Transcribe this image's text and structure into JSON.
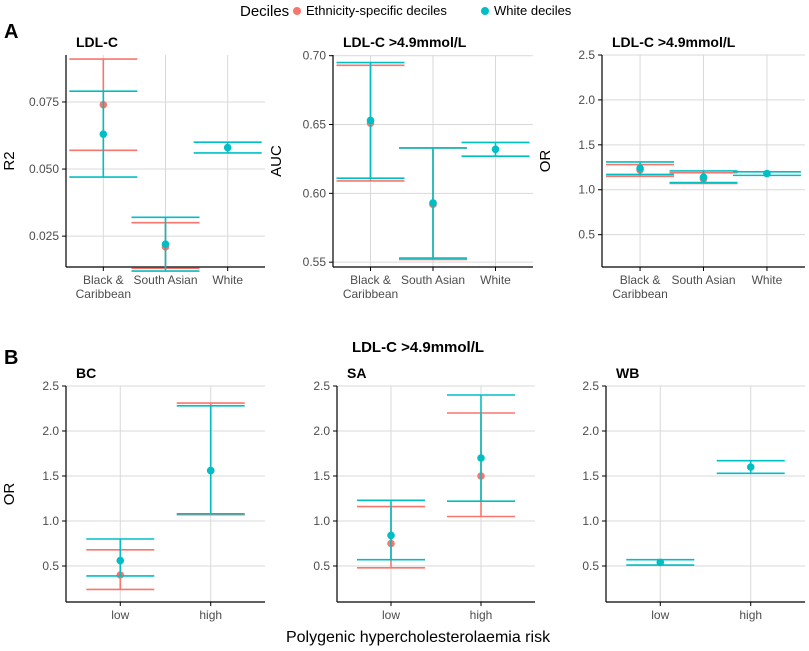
{
  "colors": {
    "ethnicity": "#F8766D",
    "white": "#00BFC4",
    "grid": "#d9d9d9",
    "axis": "#000000"
  },
  "legend": {
    "title": "Deciles",
    "items": [
      {
        "label": "Ethnicity-specific deciles",
        "color": "#F8766D"
      },
      {
        "label": "White deciles",
        "color": "#00BFC4"
      }
    ]
  },
  "panel_labels": {
    "a": "A",
    "b": "B"
  },
  "row_b_title": "LDL-C >4.9mmol/L",
  "x_axis_title": "Polygenic hypercholesterolaemia risk",
  "chart_data": [
    {
      "type": "errorbar",
      "id": "a1",
      "title": "LDL-C",
      "ylabel": "R2",
      "categories": [
        "Black &\nCaribbean",
        "South Asian",
        "White"
      ],
      "ylim": [
        0.0135,
        0.0925
      ],
      "yticks": [
        0.025,
        0.05,
        0.075
      ],
      "ytick_labels": [
        "0.025",
        "0.050",
        "0.075"
      ],
      "series": [
        {
          "name": "Ethnicity-specific deciles",
          "color": "#F8766D",
          "points": [
            {
              "category": "Black &\nCaribbean",
              "est": 0.074,
              "lo": 0.057,
              "hi": 0.091
            },
            {
              "category": "South Asian",
              "est": 0.021,
              "lo": 0.013,
              "hi": 0.03
            }
          ]
        },
        {
          "name": "White deciles",
          "color": "#00BFC4",
          "points": [
            {
              "category": "Black &\nCaribbean",
              "est": 0.063,
              "lo": 0.047,
              "hi": 0.079
            },
            {
              "category": "South Asian",
              "est": 0.022,
              "lo": 0.012,
              "hi": 0.032
            },
            {
              "category": "White",
              "est": 0.058,
              "lo": 0.056,
              "hi": 0.06
            }
          ]
        }
      ]
    },
    {
      "type": "errorbar",
      "id": "a2",
      "title": "LDL-C >4.9mmol/L",
      "ylabel": "AUC",
      "categories": [
        "Black &\nCaribbean",
        "South Asian",
        "White"
      ],
      "ylim": [
        0.5465,
        0.7005
      ],
      "yticks": [
        0.55,
        0.6,
        0.65,
        0.7
      ],
      "ytick_labels": [
        "0.55",
        "0.60",
        "0.65",
        "0.70"
      ],
      "series": [
        {
          "name": "Ethnicity-specific deciles",
          "color": "#F8766D",
          "points": [
            {
              "category": "Black &\nCaribbean",
              "est": 0.651,
              "lo": 0.609,
              "hi": 0.693
            },
            {
              "category": "South Asian",
              "est": 0.592,
              "lo": 0.552,
              "hi": 0.633
            }
          ]
        },
        {
          "name": "White deciles",
          "color": "#00BFC4",
          "points": [
            {
              "category": "Black &\nCaribbean",
              "est": 0.653,
              "lo": 0.611,
              "hi": 0.695
            },
            {
              "category": "South Asian",
              "est": 0.593,
              "lo": 0.553,
              "hi": 0.633
            },
            {
              "category": "White",
              "est": 0.632,
              "lo": 0.627,
              "hi": 0.637
            }
          ]
        }
      ]
    },
    {
      "type": "errorbar",
      "id": "a3",
      "title": "LDL-C >4.9mmol/L",
      "ylabel": "OR",
      "categories": [
        "Black &\nCaribbean",
        "South Asian",
        "White"
      ],
      "ylim": [
        0.14,
        2.5
      ],
      "yticks": [
        0.5,
        1.0,
        1.5,
        2.0,
        2.5
      ],
      "ytick_labels": [
        "0.5",
        "1.0",
        "1.5",
        "2.0",
        "2.5"
      ],
      "series": [
        {
          "name": "Ethnicity-specific deciles",
          "color": "#F8766D",
          "points": [
            {
              "category": "Black &\nCaribbean",
              "est": 1.22,
              "lo": 1.15,
              "hi": 1.28
            },
            {
              "category": "South Asian",
              "est": 1.12,
              "lo": 1.07,
              "hi": 1.19
            }
          ]
        },
        {
          "name": "White deciles",
          "color": "#00BFC4",
          "points": [
            {
              "category": "Black &\nCaribbean",
              "est": 1.24,
              "lo": 1.17,
              "hi": 1.31
            },
            {
              "category": "South Asian",
              "est": 1.14,
              "lo": 1.08,
              "hi": 1.21
            },
            {
              "category": "White",
              "est": 1.18,
              "lo": 1.16,
              "hi": 1.2
            }
          ]
        }
      ]
    },
    {
      "type": "errorbar",
      "id": "b1",
      "title": "BC",
      "ylabel": "OR",
      "categories": [
        "low",
        "high"
      ],
      "ylim": [
        0.1,
        2.5
      ],
      "yticks": [
        0.5,
        1.0,
        1.5,
        2.0,
        2.5
      ],
      "ytick_labels": [
        "0.5",
        "1.0",
        "1.5",
        "2.0",
        "2.5"
      ],
      "series": [
        {
          "name": "Ethnicity-specific deciles",
          "color": "#F8766D",
          "points": [
            {
              "category": "low",
              "est": 0.4,
              "lo": 0.24,
              "hi": 0.68
            },
            {
              "category": "high",
              "est": 1.56,
              "lo": 1.07,
              "hi": 2.31
            }
          ]
        },
        {
          "name": "White deciles",
          "color": "#00BFC4",
          "points": [
            {
              "category": "low",
              "est": 0.56,
              "lo": 0.39,
              "hi": 0.8
            },
            {
              "category": "high",
              "est": 1.56,
              "lo": 1.08,
              "hi": 2.28
            }
          ]
        }
      ]
    },
    {
      "type": "errorbar",
      "id": "b2",
      "title": "SA",
      "ylabel": "",
      "categories": [
        "low",
        "high"
      ],
      "ylim": [
        0.1,
        2.5
      ],
      "yticks": [
        0.5,
        1.0,
        1.5,
        2.0,
        2.5
      ],
      "ytick_labels": [
        "0.5",
        "1.0",
        "1.5",
        "2.0",
        "2.5"
      ],
      "series": [
        {
          "name": "Ethnicity-specific deciles",
          "color": "#F8766D",
          "points": [
            {
              "category": "low",
              "est": 0.75,
              "lo": 0.48,
              "hi": 1.16
            },
            {
              "category": "high",
              "est": 1.5,
              "lo": 1.05,
              "hi": 2.2
            }
          ]
        },
        {
          "name": "White deciles",
          "color": "#00BFC4",
          "points": [
            {
              "category": "low",
              "est": 0.84,
              "lo": 0.57,
              "hi": 1.23
            },
            {
              "category": "high",
              "est": 1.7,
              "lo": 1.22,
              "hi": 2.4
            }
          ]
        }
      ]
    },
    {
      "type": "errorbar",
      "id": "b3",
      "title": "WB",
      "ylabel": "",
      "categories": [
        "low",
        "high"
      ],
      "ylim": [
        0.1,
        2.5
      ],
      "yticks": [
        0.5,
        1.0,
        1.5,
        2.0,
        2.5
      ],
      "ytick_labels": [
        "0.5",
        "1.0",
        "1.5",
        "2.0",
        "2.5"
      ],
      "series": [
        {
          "name": "White deciles",
          "color": "#00BFC4",
          "points": [
            {
              "category": "low",
              "est": 0.54,
              "lo": 0.51,
              "hi": 0.57
            },
            {
              "category": "high",
              "est": 1.6,
              "lo": 1.53,
              "hi": 1.67
            }
          ]
        }
      ]
    }
  ]
}
